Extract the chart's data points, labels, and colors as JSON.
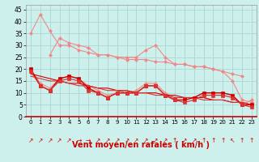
{
  "x": [
    0,
    1,
    2,
    3,
    4,
    5,
    6,
    7,
    8,
    9,
    10,
    11,
    12,
    13,
    14,
    15,
    16,
    17,
    18,
    19,
    20,
    21,
    22,
    23
  ],
  "line_upper_envelope": [
    35,
    43,
    36,
    30,
    30,
    28,
    27,
    26,
    26,
    25,
    24,
    24,
    24,
    23,
    23,
    22,
    22,
    21,
    21,
    20,
    19,
    18,
    17,
    null
  ],
  "line_mid_wavy": [
    null,
    null,
    26,
    33,
    31,
    30,
    29,
    26,
    26,
    25,
    25,
    25,
    28,
    30,
    25,
    22,
    22,
    21,
    21,
    20,
    19,
    15,
    7,
    6
  ],
  "line_lower_light": [
    20,
    14,
    12,
    16,
    17,
    16,
    13,
    11,
    9,
    10,
    10,
    11,
    14,
    14,
    10,
    8,
    8,
    8,
    10,
    10,
    10,
    9,
    5,
    7
  ],
  "line_dark1": [
    20,
    13,
    11,
    16,
    17,
    16,
    12,
    10,
    8,
    10,
    10,
    10,
    13,
    13,
    9,
    7,
    7,
    8,
    10,
    10,
    10,
    9,
    5,
    5
  ],
  "line_dark2": [
    19,
    13,
    11,
    15,
    16,
    15,
    11,
    10,
    8,
    10,
    10,
    10,
    13,
    13,
    9,
    7,
    6,
    7,
    9,
    9,
    9,
    8,
    5,
    4
  ],
  "line_regression1": [
    18,
    17,
    16,
    15,
    14,
    14,
    13,
    12,
    12,
    11,
    11,
    10,
    10,
    10,
    9,
    9,
    8,
    8,
    8,
    7,
    7,
    6,
    6,
    5
  ],
  "line_regression2": [
    17,
    16,
    15,
    15,
    14,
    13,
    13,
    12,
    11,
    11,
    10,
    10,
    10,
    9,
    9,
    8,
    8,
    8,
    7,
    7,
    7,
    6,
    6,
    5
  ],
  "arrows": [
    "↗",
    "↗",
    "↗",
    "↗",
    "↗",
    "→",
    "→",
    "↗",
    "↗",
    "↗",
    "↗",
    "↗",
    "↗",
    "↗",
    "↗",
    "↑",
    "↗",
    "↗",
    "↑",
    "↑",
    "↑",
    "↖",
    "↑",
    "↑"
  ],
  "bg_color": "#cef0ec",
  "grid_color": "#aad8d3",
  "xlabel": "Vent moyen/en rafales ( km/h )",
  "ylim": [
    0,
    47
  ],
  "xlim": [
    -0.5,
    23.5
  ],
  "yticks": [
    0,
    5,
    10,
    15,
    20,
    25,
    30,
    35,
    40,
    45
  ],
  "xticks": [
    0,
    1,
    2,
    3,
    4,
    5,
    6,
    7,
    8,
    9,
    10,
    11,
    12,
    13,
    14,
    15,
    16,
    17,
    18,
    19,
    20,
    21,
    22,
    23
  ],
  "color_light": "#f08888",
  "color_dark": "#cc0000",
  "color_mid": "#dd3333",
  "spine_bottom_color": "#cc0000"
}
